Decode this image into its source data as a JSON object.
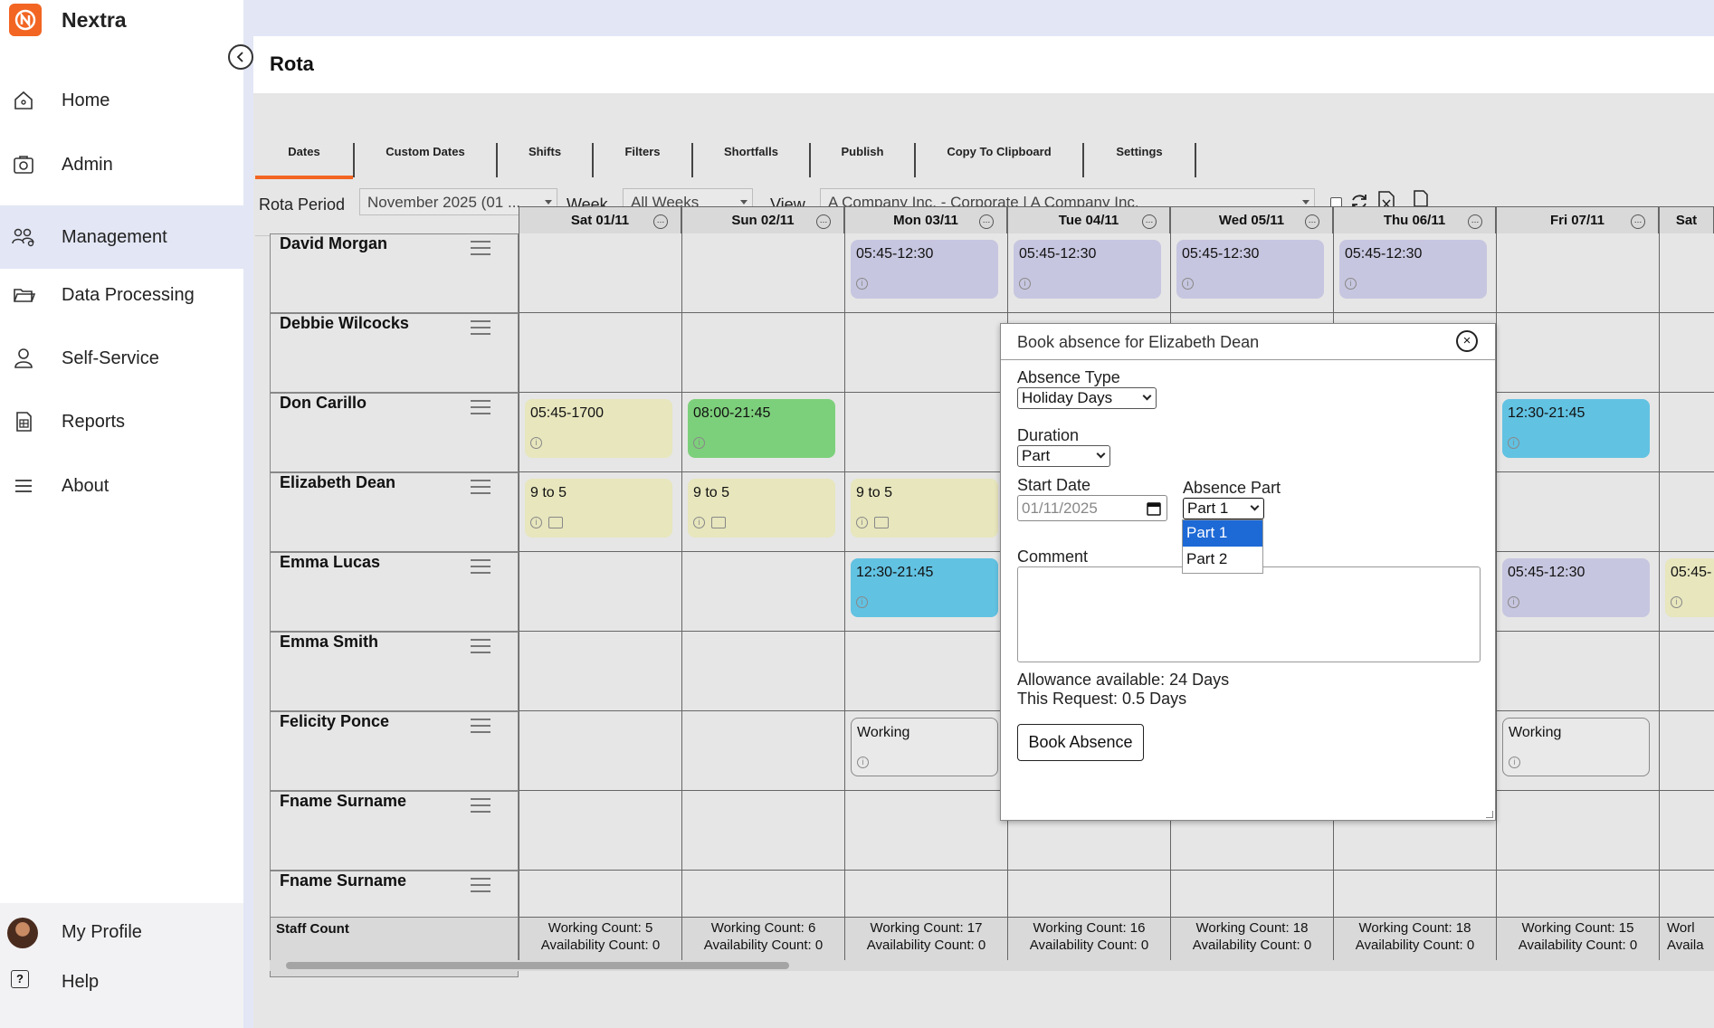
{
  "app": {
    "name": "Nextra"
  },
  "sidebar": {
    "items": [
      {
        "label": "Home",
        "icon": "home-icon"
      },
      {
        "label": "Admin",
        "icon": "admin-icon"
      },
      {
        "label": "Management",
        "icon": "users-icon"
      },
      {
        "label": "Data Processing",
        "icon": "folder-icon"
      },
      {
        "label": "Self-Service",
        "icon": "person-icon"
      },
      {
        "label": "Reports",
        "icon": "report-icon"
      },
      {
        "label": "About",
        "icon": "menu-icon"
      }
    ],
    "active": "Management",
    "bottom": {
      "profile": "My Profile",
      "help": "Help"
    }
  },
  "page": {
    "title": "Rota"
  },
  "tabs": [
    "Dates",
    "Custom Dates",
    "Shifts",
    "Filters",
    "Shortfalls",
    "Publish",
    "Copy To Clipboard",
    "Settings"
  ],
  "toolbar": {
    "rota_period_label": "Rota Period",
    "rota_period_value": "November 2025 (01 ...",
    "week_label": "Week",
    "week_value": "All Weeks",
    "view_label": "View",
    "view_value": "A Company Inc. - Corporate | A Company Inc."
  },
  "days": [
    "Sat 01/11",
    "Sun 02/11",
    "Mon 03/11",
    "Tue 04/11",
    "Wed 05/11",
    "Thu 06/11",
    "Fri 07/11",
    "Sat"
  ],
  "employees": [
    {
      "name": "David Morgan",
      "shifts": {
        "2": "05:45-12:30",
        "3": "05:45-12:30",
        "4": "05:45-12:30",
        "5": "05:45-12:30"
      }
    },
    {
      "name": "Debbie Wilcocks",
      "shifts": {}
    },
    {
      "name": "Don Carillo",
      "shifts": {
        "0": "05:45-1700",
        "1": "08:00-21:45",
        "6": "12:30-21:45"
      }
    },
    {
      "name": "Elizabeth Dean",
      "shifts": {
        "0": "9 to 5",
        "1": "9 to 5",
        "2": "9 to 5"
      }
    },
    {
      "name": "Emma Lucas",
      "shifts": {
        "2": "12:30-21:45",
        "6": "05:45-12:30",
        "7": "05:45-"
      }
    },
    {
      "name": "Emma Smith",
      "shifts": {}
    },
    {
      "name": "Felicity Ponce",
      "shifts": {
        "2": "Working",
        "6": "Working"
      }
    },
    {
      "name": "Fname Surname",
      "shifts": {}
    },
    {
      "name": "Fname Surname",
      "shifts": {}
    }
  ],
  "footer": {
    "label": "Staff Count",
    "counts": [
      {
        "working": "Working Count: 5",
        "availability": "Availability Count: 0"
      },
      {
        "working": "Working Count: 6",
        "availability": "Availability Count: 0"
      },
      {
        "working": "Working Count: 17",
        "availability": "Availability Count: 0"
      },
      {
        "working": "Working Count: 16",
        "availability": "Availability Count: 0"
      },
      {
        "working": "Working Count: 18",
        "availability": "Availability Count: 0"
      },
      {
        "working": "Working Count: 18",
        "availability": "Availability Count: 0"
      },
      {
        "working": "Working Count: 15",
        "availability": "Availability Count: 0"
      },
      {
        "working": "Worl",
        "availability": "Availa"
      }
    ]
  },
  "modal": {
    "title": "Book absence for Elizabeth Dean",
    "absence_type_label": "Absence Type",
    "absence_type_value": "Holiday Days",
    "duration_label": "Duration",
    "duration_value": "Part",
    "start_date_label": "Start Date",
    "start_date_value": "01/11/2025",
    "absence_part_label": "Absence Part",
    "absence_part_value": "Part 1",
    "absence_part_options": [
      "Part 1",
      "Part 2"
    ],
    "comment_label": "Comment",
    "allowance": "Allowance available: 24 Days",
    "request": "This Request: 0.5 Days",
    "book_button": "Book Absence"
  },
  "colors": {
    "accent": "#f26522",
    "active_nav": "#e3e6f5",
    "shift_purple": "#c7c6e0",
    "shift_yellow": "#e7e6bd",
    "shift_green": "#7dd07b",
    "shift_blue": "#62c2e2",
    "selected_option": "#1d69d6"
  }
}
